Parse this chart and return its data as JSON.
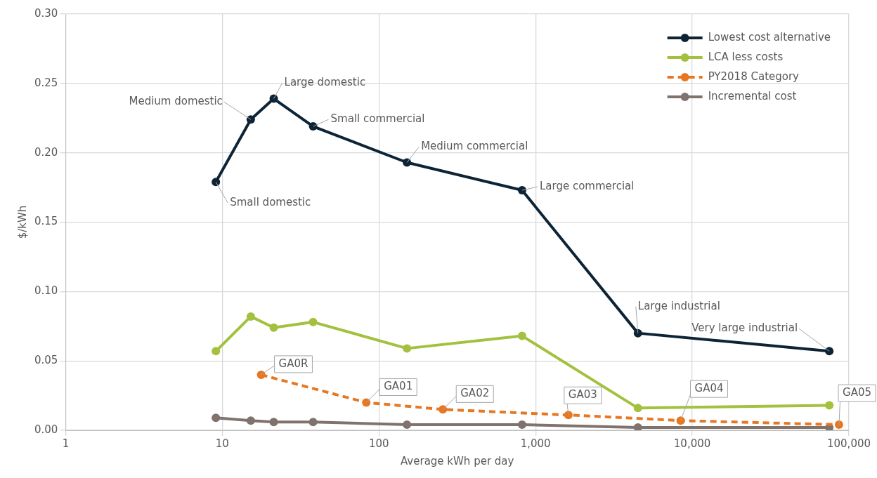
{
  "chart_data": {
    "type": "line",
    "xlabel": "Average kWh per day",
    "ylabel": "$/kWh",
    "log": "x",
    "xlim": [
      1,
      100000
    ],
    "xticks": [
      1,
      10,
      100,
      {
        "value": 1000,
        "label": "1,000"
      },
      {
        "value": 10000,
        "label": "10,000"
      },
      {
        "value": 100000,
        "label": "100,000"
      }
    ],
    "ylim": [
      0,
      0.3
    ],
    "yticks": [
      {
        "value": 0,
        "label": "0.00"
      },
      {
        "value": 0.05,
        "label": "0.05"
      },
      {
        "value": 0.1,
        "label": "0.10"
      },
      {
        "value": 0.15,
        "label": "0.15"
      },
      {
        "value": 0.2,
        "label": "0.20"
      },
      {
        "value": 0.25,
        "label": "0.25"
      },
      {
        "value": 0.3,
        "label": "0.30"
      }
    ],
    "grid": true,
    "legend": "top right",
    "marker": "circle",
    "x": [
      9.1,
      15.2,
      21.3,
      38,
      151,
      820,
      4500,
      75000
    ],
    "series": [
      {
        "name": "Lowest cost alternative",
        "color": "#0d2436",
        "values": [
          0.179,
          0.224,
          0.239,
          0.219,
          0.193,
          0.173,
          0.07,
          0.057
        ]
      },
      {
        "name": "LCA less costs",
        "color": "#a3c03f",
        "values": [
          0.057,
          0.082,
          0.074,
          0.078,
          0.059,
          0.068,
          0.016,
          0.018
        ]
      },
      {
        "name": "PY2018 Category",
        "color": "#e87722",
        "line_style": "dashed",
        "x": [
          17.7,
          83,
          256,
          1620,
          8430,
          86500
        ],
        "values": [
          0.04,
          0.02,
          0.015,
          0.011,
          0.007,
          0.004
        ]
      },
      {
        "name": "Incremental cost",
        "color": "#80726d",
        "values": [
          0.009,
          0.007,
          0.006,
          0.006,
          0.004,
          0.004,
          0.002,
          0.002
        ]
      }
    ],
    "annotations": [
      {
        "text": "Small domestic",
        "x": 9.1,
        "y": 0.179
      },
      {
        "text": "Medium domestic",
        "x": 15.2,
        "y": 0.224
      },
      {
        "text": "Large domestic",
        "x": 21.3,
        "y": 0.239
      },
      {
        "text": "Small commercial",
        "x": 38,
        "y": 0.219
      },
      {
        "text": "Medium commercial",
        "x": 151,
        "y": 0.193
      },
      {
        "text": "Large commercial",
        "x": 820,
        "y": 0.173
      },
      {
        "text": "Large industrial",
        "x": 4500,
        "y": 0.07
      },
      {
        "text": "Very large industrial",
        "x": 75000,
        "y": 0.057
      },
      {
        "text": "GA0R",
        "x": 17.7,
        "y": 0.04
      },
      {
        "text": "GA01",
        "x": 83,
        "y": 0.02
      },
      {
        "text": "GA02",
        "x": 256,
        "y": 0.015
      },
      {
        "text": "GA03",
        "x": 1620,
        "y": 0.011
      },
      {
        "text": "GA04",
        "x": 8430,
        "y": 0.007
      },
      {
        "text": "GA05",
        "x": 86500,
        "y": 0.004
      }
    ]
  }
}
